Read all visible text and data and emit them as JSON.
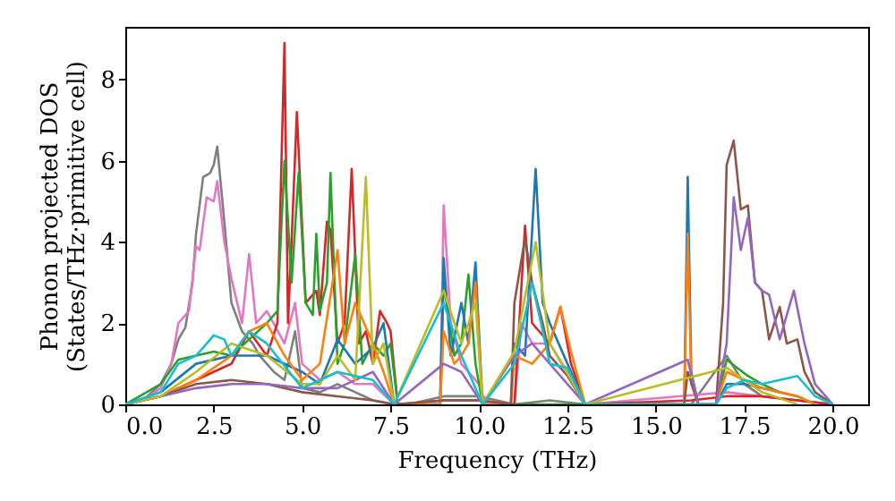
{
  "chart_data": {
    "type": "line",
    "xlabel": "Frequency (THz)",
    "ylabel": "Phonon projected DOS\n(States/THz·primitive cell)",
    "xlim": [
      0,
      21
    ],
    "ylim": [
      0,
      9.3
    ],
    "xticks": [
      {
        "value": 0,
        "label": "0.0"
      },
      2.5,
      {
        "value": 5,
        "label": "5.0"
      },
      7.5,
      {
        "value": 10,
        "label": "10.0"
      },
      12.5,
      {
        "value": 15,
        "label": "15.0"
      },
      17.5,
      {
        "value": 20,
        "label": "20.0"
      }
    ],
    "yticks": [
      0,
      2,
      4,
      6,
      8
    ],
    "grid": false,
    "series": [
      {
        "color": "#7f7f7f",
        "x": [
          0,
          0.5,
          1.0,
          1.3,
          1.5,
          1.7,
          1.9,
          2.0,
          2.2,
          2.4,
          2.5,
          2.6,
          2.8,
          3.0,
          3.3,
          3.6,
          3.8,
          4.2,
          4.5,
          4.8,
          5.0,
          5.5,
          6.0,
          6.5,
          7.0,
          7.6,
          8.0,
          9.0,
          10.0,
          11.0,
          12.0,
          13.0,
          16.0,
          17.0,
          17.5,
          18.0,
          19.0,
          20.0
        ],
        "values": [
          0,
          0.1,
          0.5,
          1.0,
          1.6,
          1.9,
          3.0,
          4.2,
          5.6,
          5.7,
          5.9,
          6.35,
          4.5,
          2.5,
          1.8,
          1.5,
          1.2,
          0.8,
          0.6,
          1.8,
          0.4,
          0.3,
          0.5,
          0.3,
          0.1,
          0,
          0,
          0.2,
          0.2,
          0,
          0.1,
          0,
          0,
          1.2,
          0.5,
          0.2,
          0.1,
          0
        ]
      },
      {
        "color": "#e377c2",
        "x": [
          0,
          0.5,
          1.0,
          1.3,
          1.5,
          1.8,
          2.0,
          2.1,
          2.3,
          2.5,
          2.6,
          2.8,
          3.0,
          3.3,
          3.5,
          3.7,
          4.0,
          4.5,
          4.8,
          5.0,
          5.5,
          6.0,
          6.5,
          7.0,
          7.6,
          8.9,
          9.0,
          9.2,
          9.5,
          10.0,
          10.2,
          11.0,
          11.2,
          11.5,
          12.0,
          12.5,
          13.0,
          17.0,
          18.0,
          20.0
        ],
        "values": [
          0,
          0.1,
          0.4,
          1.0,
          2.0,
          2.3,
          3.9,
          3.8,
          5.1,
          5.0,
          5.5,
          4.0,
          3.1,
          2.0,
          3.7,
          2.0,
          2.3,
          1.5,
          2.5,
          1.0,
          0.6,
          0.8,
          0.5,
          0.5,
          0,
          0,
          4.9,
          2.0,
          1.0,
          0.5,
          0,
          0,
          2.0,
          1.5,
          1.5,
          0.8,
          0,
          0.3,
          0.2,
          0
        ]
      },
      {
        "color": "#d62728",
        "x": [
          0,
          1.0,
          2.0,
          3.0,
          3.5,
          4.0,
          4.3,
          4.5,
          4.6,
          4.7,
          4.85,
          5.1,
          5.4,
          5.5,
          5.7,
          5.8,
          6.0,
          6.2,
          6.4,
          6.6,
          6.8,
          7.0,
          7.2,
          7.4,
          7.5,
          7.7,
          9.0,
          10.0,
          11.0,
          11.3,
          11.5,
          12.0,
          12.3,
          12.6,
          13.0,
          16.0,
          17.0,
          18.0,
          20.0
        ],
        "values": [
          0,
          0.2,
          0.6,
          1.0,
          1.8,
          1.2,
          2.0,
          8.9,
          2.0,
          4.0,
          7.2,
          2.5,
          2.8,
          2.2,
          4.5,
          4.3,
          1.5,
          2.0,
          5.8,
          1.5,
          1.8,
          1.0,
          2.3,
          2.0,
          1.8,
          0,
          0.1,
          0.1,
          0,
          4.4,
          2.0,
          1.5,
          2.4,
          1.0,
          0,
          0.1,
          0.2,
          0.2,
          0
        ]
      },
      {
        "color": "#2ca02c",
        "x": [
          0,
          1.0,
          1.5,
          2.0,
          2.5,
          3.0,
          3.5,
          4.0,
          4.3,
          4.5,
          4.7,
          4.9,
          5.1,
          5.3,
          5.4,
          5.5,
          5.7,
          5.8,
          6.0,
          6.2,
          6.5,
          6.7,
          7.0,
          7.3,
          7.5,
          7.7,
          8.9,
          9.0,
          9.3,
          9.5,
          9.7,
          9.9,
          10.1,
          16.7,
          17.0,
          17.3,
          17.6,
          18.0,
          18.5,
          19.0,
          19.5
        ],
        "values": [
          0,
          0.5,
          1.1,
          1.2,
          1.3,
          1.2,
          1.6,
          2.0,
          2.3,
          6.0,
          3.0,
          5.7,
          2.5,
          2.2,
          4.2,
          2.3,
          3.0,
          5.7,
          1.0,
          1.5,
          3.7,
          1.0,
          1.5,
          1.2,
          1.5,
          0,
          0,
          3.0,
          1.2,
          1.5,
          3.2,
          1.0,
          0,
          0,
          1.1,
          0.9,
          0.7,
          0.5,
          0.3,
          0.2,
          0
        ]
      },
      {
        "color": "#1f77b4",
        "x": [
          0,
          1.0,
          2.0,
          3.0,
          4.0,
          5.0,
          5.5,
          6.0,
          6.5,
          7.0,
          7.3,
          7.6,
          8.9,
          9.0,
          9.2,
          9.5,
          9.7,
          9.9,
          10.1,
          10.9,
          11.0,
          11.3,
          11.6,
          11.8,
          12.0,
          12.5,
          13.0,
          15.8,
          15.9,
          16.0,
          16.2,
          16.7,
          17.0,
          17.5,
          18.0,
          18.5
        ],
        "values": [
          0,
          0.3,
          1.0,
          1.2,
          1.2,
          0.8,
          0.5,
          1.6,
          1.0,
          1.4,
          2.0,
          0,
          0,
          3.6,
          1.2,
          2.5,
          1.5,
          3.5,
          0,
          0,
          1.5,
          1.2,
          5.8,
          2.5,
          2.0,
          1.0,
          0,
          0,
          5.6,
          0.8,
          0,
          0,
          0.5,
          0.5,
          0.4,
          0.3
        ]
      },
      {
        "color": "#ff7f0e",
        "x": [
          0,
          1.0,
          2.0,
          3.0,
          3.5,
          4.0,
          4.5,
          5.0,
          5.5,
          6.0,
          6.2,
          6.5,
          7.0,
          7.3,
          7.6,
          8.9,
          9.0,
          9.3,
          9.5,
          9.7,
          9.9,
          10.1,
          10.9,
          11.0,
          11.5,
          12.0,
          12.3,
          12.6,
          13.0,
          15.8,
          15.9,
          16.0,
          16.2,
          16.7,
          17.0,
          17.5,
          18.0,
          18.5,
          19.0,
          19.5
        ],
        "values": [
          0,
          0.2,
          0.6,
          1.2,
          1.8,
          2.0,
          1.2,
          0.6,
          1.0,
          3.8,
          1.5,
          2.5,
          1.5,
          0.8,
          0,
          0,
          1.8,
          1.0,
          1.2,
          1.5,
          3.0,
          0,
          0,
          1.2,
          1.0,
          1.5,
          2.4,
          1.3,
          0,
          0,
          4.2,
          0.5,
          0,
          0,
          0.8,
          0.6,
          0.4,
          0.3,
          0.2,
          0
        ]
      },
      {
        "color": "#8c564b",
        "x": [
          0,
          1.0,
          2.0,
          3.0,
          4.0,
          5.0,
          6.0,
          7.0,
          7.6,
          9.0,
          10.0,
          10.9,
          11.0,
          11.3,
          11.5,
          11.8,
          12.0,
          12.5,
          13.0,
          15.8,
          15.9,
          16.2,
          16.7,
          16.9,
          17.0,
          17.2,
          17.4,
          17.6,
          17.8,
          18.0,
          18.2,
          18.5,
          18.7,
          19.0,
          19.2,
          19.5,
          20.0
        ],
        "values": [
          0,
          0.2,
          0.5,
          0.6,
          0.5,
          0.3,
          0.2,
          0.1,
          0,
          0.1,
          0.1,
          0,
          2.5,
          4.1,
          3.0,
          2.0,
          1.2,
          0.7,
          0,
          0,
          0.8,
          0,
          0,
          2.5,
          5.9,
          6.5,
          4.8,
          4.9,
          3.0,
          2.8,
          1.6,
          2.4,
          1.5,
          1.6,
          0.8,
          0.3,
          0
        ]
      },
      {
        "color": "#9467bd",
        "x": [
          0,
          1.0,
          2.0,
          3.0,
          4.0,
          5.0,
          6.0,
          7.0,
          7.6,
          9.0,
          9.5,
          10.1,
          11.0,
          11.5,
          12.0,
          13.0,
          15.9,
          16.2,
          16.7,
          17.0,
          17.2,
          17.4,
          17.6,
          17.8,
          18.0,
          18.2,
          18.5,
          18.9,
          19.2,
          19.5,
          20.0
        ],
        "values": [
          0,
          0.2,
          0.4,
          0.5,
          0.5,
          0.4,
          0.4,
          0.8,
          0,
          1.0,
          0.8,
          0,
          1.2,
          1.5,
          1.0,
          0,
          1.1,
          0,
          0,
          1.5,
          5.1,
          3.8,
          4.6,
          3.0,
          2.8,
          2.7,
          1.6,
          2.8,
          1.5,
          0.5,
          0
        ]
      },
      {
        "color": "#bcbd22",
        "x": [
          0,
          1.0,
          2.0,
          3.0,
          4.0,
          5.0,
          5.5,
          6.0,
          6.5,
          6.8,
          7.0,
          7.3,
          7.6,
          9.0,
          9.5,
          9.9,
          10.1,
          11.0,
          11.6,
          12.0,
          13.0,
          17.0,
          17.5,
          18.0,
          19.0
        ],
        "values": [
          0,
          0.2,
          0.8,
          1.5,
          1.2,
          0.5,
          0.5,
          1.2,
          0.6,
          5.6,
          1.0,
          1.5,
          0,
          2.8,
          1.5,
          2.5,
          0,
          1.3,
          4.0,
          1.5,
          0,
          0.9,
          0.6,
          0.3,
          0
        ]
      },
      {
        "color": "#17becf",
        "x": [
          0,
          1.0,
          1.5,
          2.0,
          2.5,
          2.8,
          3.0,
          3.5,
          4.0,
          5.0,
          6.0,
          7.0,
          7.6,
          9.0,
          9.5,
          10.1,
          11.0,
          11.5,
          12.0,
          12.5,
          13.0,
          16.7,
          17.0,
          17.5,
          18.0,
          18.5,
          19.0,
          19.5,
          20.0
        ],
        "values": [
          0,
          0.3,
          1.0,
          1.2,
          1.7,
          1.6,
          1.2,
          1.8,
          1.5,
          0.4,
          0.8,
          0.6,
          0,
          2.5,
          1.2,
          0,
          1.0,
          3.0,
          1.0,
          0.9,
          0,
          0,
          0.4,
          0.6,
          0.5,
          0.6,
          0.7,
          0.2,
          0
        ]
      }
    ]
  }
}
